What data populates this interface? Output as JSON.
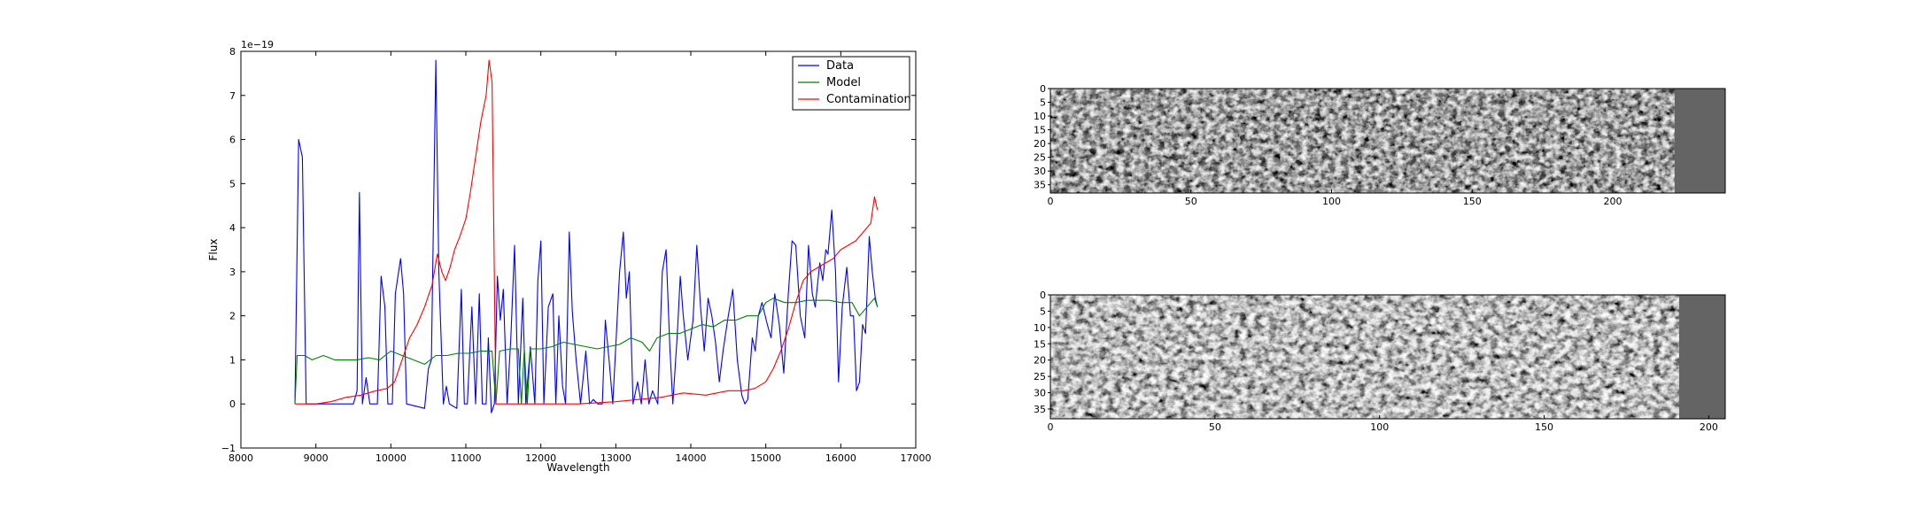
{
  "chart_data": [
    {
      "type": "line",
      "xlabel": "Wavelength",
      "ylabel": "Flux",
      "offset_label": "1e−19",
      "xlim": [
        8000,
        17000
      ],
      "ylim": [
        -1,
        8
      ],
      "xticks": [
        8000,
        9000,
        10000,
        11000,
        12000,
        13000,
        14000,
        15000,
        16000,
        17000
      ],
      "yticks": [
        -1,
        0,
        1,
        2,
        3,
        4,
        5,
        6,
        7,
        8
      ],
      "legend_position": "top-right",
      "grid": false,
      "series": [
        {
          "name": "Data",
          "color": "#0000ff",
          "points": [
            [
              8720,
              0.0
            ],
            [
              8770,
              6.0
            ],
            [
              8820,
              5.6
            ],
            [
              8870,
              0.0
            ],
            [
              9500,
              0.0
            ],
            [
              9550,
              0.3
            ],
            [
              9580,
              4.8
            ],
            [
              9620,
              0.0
            ],
            [
              9670,
              0.6
            ],
            [
              9720,
              0.0
            ],
            [
              9820,
              0.0
            ],
            [
              9870,
              2.9
            ],
            [
              9920,
              2.2
            ],
            [
              9960,
              0.0
            ],
            [
              10020,
              0.0
            ],
            [
              10060,
              2.5
            ],
            [
              10130,
              3.3
            ],
            [
              10170,
              2.5
            ],
            [
              10210,
              0.0
            ],
            [
              10450,
              -0.1
            ],
            [
              10500,
              0.8
            ],
            [
              10540,
              1.0
            ],
            [
              10600,
              7.8
            ],
            [
              10640,
              3.0
            ],
            [
              10700,
              0.0
            ],
            [
              10740,
              0.4
            ],
            [
              10780,
              0.0
            ],
            [
              10880,
              -0.1
            ],
            [
              10940,
              2.6
            ],
            [
              10980,
              0.0
            ],
            [
              11020,
              0.0
            ],
            [
              11080,
              2.2
            ],
            [
              11130,
              0.0
            ],
            [
              11180,
              2.5
            ],
            [
              11220,
              0.0
            ],
            [
              11270,
              0.0
            ],
            [
              11300,
              1.5
            ],
            [
              11340,
              -0.2
            ],
            [
              11380,
              0.0
            ],
            [
              11420,
              2.9
            ],
            [
              11460,
              1.9
            ],
            [
              11500,
              2.6
            ],
            [
              11550,
              0.0
            ],
            [
              11600,
              1.5
            ],
            [
              11650,
              3.6
            ],
            [
              11700,
              0.0
            ],
            [
              11760,
              2.4
            ],
            [
              11800,
              0.0
            ],
            [
              11860,
              1.3
            ],
            [
              11920,
              0.0
            ],
            [
              11960,
              2.8
            ],
            [
              12000,
              3.7
            ],
            [
              12040,
              0.0
            ],
            [
              12100,
              2.2
            ],
            [
              12160,
              2.5
            ],
            [
              12200,
              0.0
            ],
            [
              12240,
              2.0
            ],
            [
              12290,
              0.4
            ],
            [
              12330,
              0.0
            ],
            [
              12380,
              3.9
            ],
            [
              12420,
              2.1
            ],
            [
              12470,
              1.0
            ],
            [
              12530,
              0.0
            ],
            [
              12600,
              1.2
            ],
            [
              12650,
              0.0
            ],
            [
              12700,
              0.1
            ],
            [
              12760,
              0.0
            ],
            [
              12820,
              0.0
            ],
            [
              12860,
              1.9
            ],
            [
              12910,
              1.0
            ],
            [
              12960,
              0.0
            ],
            [
              13050,
              3.0
            ],
            [
              13100,
              3.9
            ],
            [
              13140,
              2.4
            ],
            [
              13180,
              3.0
            ],
            [
              13230,
              0.0
            ],
            [
              13290,
              0.5
            ],
            [
              13340,
              0.0
            ],
            [
              13390,
              1.0
            ],
            [
              13440,
              0.0
            ],
            [
              13490,
              0.3
            ],
            [
              13560,
              0.0
            ],
            [
              13620,
              3.0
            ],
            [
              13670,
              3.5
            ],
            [
              13720,
              1.3
            ],
            [
              13760,
              0.0
            ],
            [
              13820,
              1.6
            ],
            [
              13860,
              2.9
            ],
            [
              13900,
              2.0
            ],
            [
              13960,
              1.0
            ],
            [
              14030,
              1.9
            ],
            [
              14080,
              3.6
            ],
            [
              14130,
              2.2
            ],
            [
              14180,
              1.2
            ],
            [
              14230,
              2.4
            ],
            [
              14280,
              2.0
            ],
            [
              14330,
              1.4
            ],
            [
              14380,
              0.5
            ],
            [
              14430,
              1.2
            ],
            [
              14500,
              2.0
            ],
            [
              14560,
              2.6
            ],
            [
              14620,
              1.0
            ],
            [
              14680,
              0.2
            ],
            [
              14720,
              0.0
            ],
            [
              14760,
              0.1
            ],
            [
              14820,
              1.5
            ],
            [
              14860,
              1.2
            ],
            [
              14900,
              2.0
            ],
            [
              14950,
              2.3
            ],
            [
              15020,
              1.8
            ],
            [
              15070,
              1.5
            ],
            [
              15120,
              2.5
            ],
            [
              15180,
              1.8
            ],
            [
              15240,
              0.7
            ],
            [
              15300,
              2.5
            ],
            [
              15350,
              3.7
            ],
            [
              15400,
              3.6
            ],
            [
              15460,
              2.0
            ],
            [
              15520,
              1.5
            ],
            [
              15570,
              3.6
            ],
            [
              15620,
              2.5
            ],
            [
              15660,
              2.2
            ],
            [
              15720,
              3.2
            ],
            [
              15760,
              2.8
            ],
            [
              15800,
              3.5
            ],
            [
              15830,
              3.4
            ],
            [
              15880,
              4.4
            ],
            [
              15930,
              3.0
            ],
            [
              15970,
              0.5
            ],
            [
              16020,
              2.2
            ],
            [
              16080,
              3.1
            ],
            [
              16130,
              2.0
            ],
            [
              16170,
              2.0
            ],
            [
              16210,
              0.3
            ],
            [
              16250,
              0.5
            ],
            [
              16290,
              1.8
            ],
            [
              16330,
              1.6
            ],
            [
              16380,
              3.8
            ],
            [
              16420,
              3.0
            ],
            [
              16460,
              2.4
            ],
            [
              16490,
              2.2
            ]
          ]
        },
        {
          "name": "Model",
          "color": "#008000",
          "points": [
            [
              8720,
              0.0
            ],
            [
              8750,
              1.1
            ],
            [
              8850,
              1.1
            ],
            [
              8950,
              1.0
            ],
            [
              9100,
              1.1
            ],
            [
              9250,
              1.0
            ],
            [
              9400,
              1.0
            ],
            [
              9550,
              1.0
            ],
            [
              9700,
              1.05
            ],
            [
              9850,
              1.0
            ],
            [
              10000,
              1.2
            ],
            [
              10150,
              1.1
            ],
            [
              10300,
              1.0
            ],
            [
              10450,
              0.9
            ],
            [
              10600,
              1.1
            ],
            [
              10750,
              1.1
            ],
            [
              10900,
              1.15
            ],
            [
              11050,
              1.15
            ],
            [
              11200,
              1.2
            ],
            [
              11350,
              1.2
            ],
            [
              11400,
              0.0
            ],
            [
              11450,
              1.2
            ],
            [
              11600,
              1.25
            ],
            [
              11700,
              1.25
            ],
            [
              11740,
              0.0
            ],
            [
              11780,
              1.25
            ],
            [
              11820,
              0.0
            ],
            [
              11860,
              1.25
            ],
            [
              12000,
              1.25
            ],
            [
              12150,
              1.3
            ],
            [
              12300,
              1.4
            ],
            [
              12450,
              1.35
            ],
            [
              12600,
              1.3
            ],
            [
              12750,
              1.25
            ],
            [
              12900,
              1.3
            ],
            [
              13050,
              1.35
            ],
            [
              13200,
              1.5
            ],
            [
              13350,
              1.4
            ],
            [
              13450,
              1.2
            ],
            [
              13550,
              1.5
            ],
            [
              13700,
              1.6
            ],
            [
              13850,
              1.6
            ],
            [
              14000,
              1.7
            ],
            [
              14150,
              1.8
            ],
            [
              14300,
              1.75
            ],
            [
              14450,
              1.9
            ],
            [
              14600,
              1.9
            ],
            [
              14750,
              2.0
            ],
            [
              14900,
              2.0
            ],
            [
              15000,
              2.3
            ],
            [
              15100,
              2.4
            ],
            [
              15250,
              2.3
            ],
            [
              15400,
              2.3
            ],
            [
              15550,
              2.35
            ],
            [
              15700,
              2.35
            ],
            [
              15850,
              2.35
            ],
            [
              16000,
              2.3
            ],
            [
              16150,
              2.3
            ],
            [
              16250,
              2.0
            ],
            [
              16350,
              2.2
            ],
            [
              16450,
              2.4
            ],
            [
              16490,
              2.2
            ]
          ]
        },
        {
          "name": "Contamination",
          "color": "#ff0000",
          "points": [
            [
              8720,
              0.0
            ],
            [
              9000,
              0.0
            ],
            [
              9200,
              0.05
            ],
            [
              9400,
              0.15
            ],
            [
              9600,
              0.2
            ],
            [
              9800,
              0.3
            ],
            [
              9950,
              0.35
            ],
            [
              10050,
              0.5
            ],
            [
              10150,
              1.0
            ],
            [
              10250,
              1.5
            ],
            [
              10350,
              1.8
            ],
            [
              10450,
              2.2
            ],
            [
              10550,
              2.7
            ],
            [
              10620,
              3.4
            ],
            [
              10680,
              3.0
            ],
            [
              10730,
              2.8
            ],
            [
              10790,
              3.1
            ],
            [
              10850,
              3.5
            ],
            [
              10920,
              3.8
            ],
            [
              11000,
              4.2
            ],
            [
              11060,
              4.8
            ],
            [
              11130,
              5.6
            ],
            [
              11200,
              6.4
            ],
            [
              11270,
              7.0
            ],
            [
              11310,
              7.8
            ],
            [
              11350,
              7.3
            ],
            [
              11400,
              0.0
            ],
            [
              12000,
              0.0
            ],
            [
              12500,
              0.0
            ],
            [
              13000,
              0.05
            ],
            [
              13300,
              0.1
            ],
            [
              13600,
              0.15
            ],
            [
              13900,
              0.25
            ],
            [
              14200,
              0.2
            ],
            [
              14500,
              0.3
            ],
            [
              14700,
              0.3
            ],
            [
              14850,
              0.35
            ],
            [
              15000,
              0.5
            ],
            [
              15100,
              0.8
            ],
            [
              15200,
              1.2
            ],
            [
              15300,
              1.7
            ],
            [
              15400,
              2.3
            ],
            [
              15500,
              2.8
            ],
            [
              15600,
              3.0
            ],
            [
              15700,
              3.1
            ],
            [
              15800,
              3.2
            ],
            [
              15900,
              3.3
            ],
            [
              16000,
              3.5
            ],
            [
              16100,
              3.6
            ],
            [
              16200,
              3.7
            ],
            [
              16300,
              3.9
            ],
            [
              16400,
              4.1
            ],
            [
              16450,
              4.7
            ],
            [
              16490,
              4.4
            ]
          ]
        }
      ]
    },
    {
      "type": "heatmap",
      "xlim": [
        0,
        240
      ],
      "ylim": [
        38,
        0
      ],
      "xticks": [
        0,
        50,
        100,
        150,
        200
      ],
      "yticks": [
        0,
        5,
        10,
        15,
        20,
        25,
        30,
        35
      ],
      "colormap": "gray",
      "masked_columns_from": 222,
      "masked_color": "#646464"
    },
    {
      "type": "heatmap",
      "xlim": [
        0,
        205
      ],
      "ylim": [
        38,
        0
      ],
      "xticks": [
        0,
        50,
        100,
        150,
        200
      ],
      "yticks": [
        0,
        5,
        10,
        15,
        20,
        25,
        30,
        35
      ],
      "colormap": "gray",
      "masked_columns_from": 191,
      "masked_color": "#646464"
    }
  ]
}
